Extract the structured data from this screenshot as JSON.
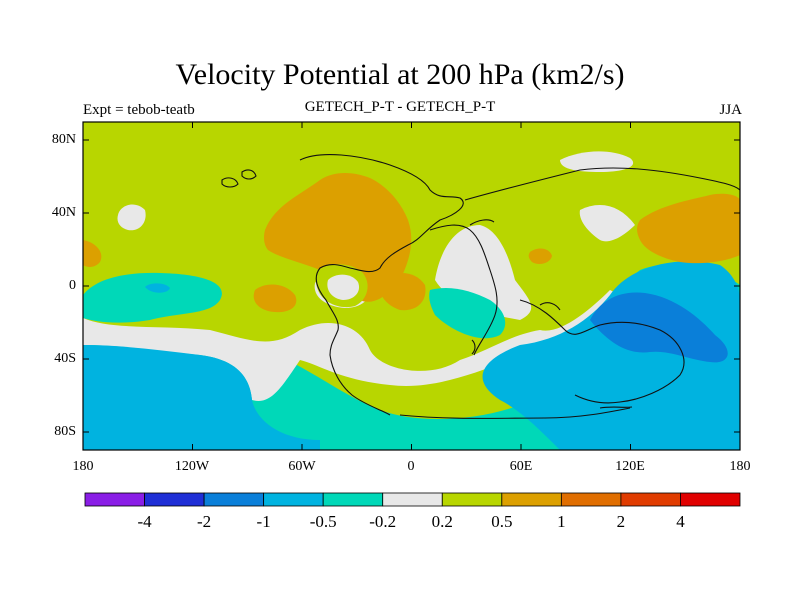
{
  "chart_data": {
    "type": "heatmap",
    "title": "Velocity Potential at 200 hPa (km2/s)",
    "subtitle_left": "Expt = tebob-teatb",
    "subtitle_center": "GETECH_P-T - GETECH_P-T",
    "subtitle_right": "JJA",
    "lat_ticks": [
      "80N",
      "40N",
      "0",
      "40S",
      "80S"
    ],
    "lon_ticks": [
      "180",
      "120W",
      "60W",
      "0",
      "60E",
      "120E",
      "180"
    ],
    "colorbar": {
      "labels": [
        "-4",
        "-2",
        "-1",
        "-0.5",
        "-0.2",
        "0.2",
        "0.5",
        "1",
        "2",
        "4"
      ],
      "colors": [
        "#8a1ee6",
        "#1f2fd6",
        "#0a7fd9",
        "#00b3e0",
        "#00d8b8",
        "#e8e8e8",
        "#b8d600",
        "#dca000",
        "#e06e00",
        "#e03c00",
        "#e00000"
      ]
    },
    "colors": {
      "background": "#b8d600",
      "negative_weak": "#00d8b8",
      "negative_mid": "#00b3e0",
      "negative_strong": "#0a7fd9",
      "neutral": "#e8e8e8",
      "positive_mid": "#dca000"
    }
  }
}
